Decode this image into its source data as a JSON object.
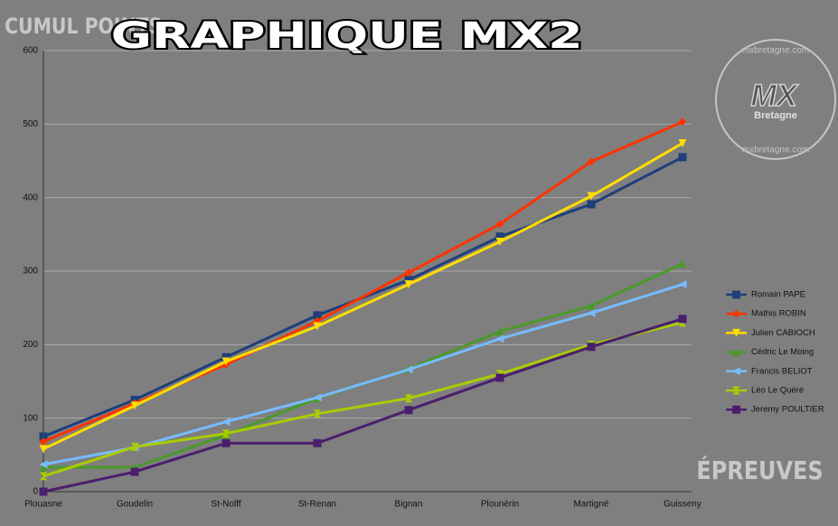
{
  "chart_data": {
    "type": "line",
    "title": "GRAPHIQUE MX2",
    "y_label": "CUMUL POINTS",
    "x_label": "ÉPREUVES",
    "watermark": {
      "site": "mxbretagne.com",
      "logo": "MX",
      "logo_sub": "Bretagne"
    },
    "categories": [
      "Plouasne",
      "Goudelin",
      "St-Nolff",
      "St-Renan",
      "Bignan",
      "Plounérin",
      "Martigné",
      "Guisseny"
    ],
    "ylim": [
      0,
      600
    ],
    "yticks": [
      0,
      100,
      200,
      300,
      400,
      500,
      600
    ],
    "grid": true,
    "legend": "right",
    "series": [
      {
        "name": "Romain PAPE",
        "color": "#1f3f7a",
        "marker": "square",
        "values": [
          75,
          125,
          183,
          240,
          288,
          347,
          391,
          455
        ]
      },
      {
        "name": "Mathis ROBIN",
        "color": "#ff3300",
        "marker": "diamond",
        "values": [
          68,
          120,
          173,
          232,
          298,
          364,
          449,
          503
        ]
      },
      {
        "name": "Julien CABIOCH",
        "color": "#ffdd00",
        "marker": "triangle-down",
        "values": [
          58,
          117,
          177,
          225,
          282,
          340,
          402,
          474
        ]
      },
      {
        "name": "Cédric Le Moing",
        "color": "#4a9a2a",
        "marker": "triangle-up",
        "values": [
          33,
          33,
          77,
          127,
          167,
          218,
          253,
          310
        ]
      },
      {
        "name": "Francis BELIOT",
        "color": "#77bbff",
        "marker": "triangle-left",
        "values": [
          37,
          60,
          95,
          128,
          166,
          208,
          243,
          282
        ]
      },
      {
        "name": "Léo Le Quéré",
        "color": "#aacc00",
        "marker": "hourglass",
        "values": [
          21,
          61,
          79,
          106,
          127,
          160,
          200,
          230
        ]
      },
      {
        "name": "Jeremy POULTIER",
        "color": "#4b1e6e",
        "marker": "square",
        "values": [
          0,
          27,
          66,
          66,
          111,
          155,
          197,
          235
        ]
      }
    ]
  }
}
